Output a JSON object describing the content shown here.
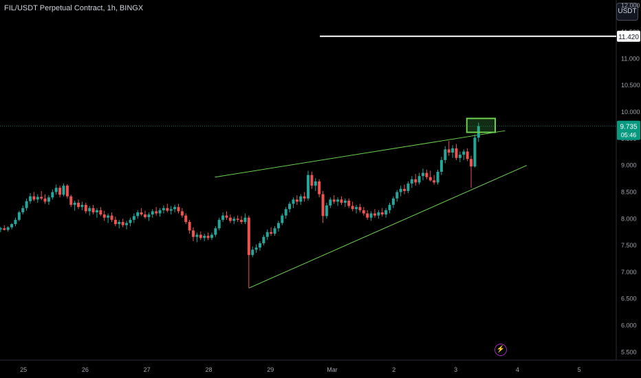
{
  "header": {
    "title": "FIL/USDT Perpetual Contract, 1h, BINGX",
    "currency": "USDT"
  },
  "colors": {
    "up": "#26a69a",
    "down": "#ef5350",
    "trend": "#6ccf4e",
    "price": "#089981",
    "background": "#000000"
  },
  "chart_data": {
    "type": "candlestick",
    "title": "FIL/USDT Perpetual Contract, 1h, BINGX",
    "xlabel": "",
    "ylabel": "",
    "ylim": [
      5.35,
      12.1
    ],
    "y_ticks": [
      "12.000",
      "11.500",
      "11.000",
      "10.500",
      "10.000",
      "9.500",
      "9.000",
      "8.500",
      "8.000",
      "7.500",
      "7.000",
      "6.500",
      "6.000",
      "5.500"
    ],
    "x_ticks": [
      "25",
      "26",
      "27",
      "28",
      "29",
      "Mar",
      "2",
      "3",
      "4",
      "5"
    ],
    "x_tick_days": [
      0,
      1,
      2,
      3,
      4,
      5,
      6,
      7,
      8,
      9
    ],
    "x_range_days": [
      -0.38,
      9.6
    ],
    "key_level": {
      "value": 11.42,
      "label": "11.420",
      "from_day": 4.8
    },
    "current_price": {
      "value": 9.735,
      "label": "9.735",
      "countdown": "05:46"
    },
    "trendlines": [
      {
        "name": "upper",
        "from": [
          3.1,
          8.78
        ],
        "to": [
          7.8,
          9.65
        ]
      },
      {
        "name": "lower",
        "from": [
          3.65,
          6.7
        ],
        "to": [
          8.15,
          9.0
        ]
      }
    ],
    "highlight_box": {
      "day_range": [
        7.18,
        7.64
      ],
      "price_range": [
        9.62,
        9.88
      ]
    },
    "candles": [
      [
        -0.37,
        7.8,
        7.85,
        7.75,
        7.82
      ],
      [
        -0.31,
        7.82,
        7.88,
        7.78,
        7.79
      ],
      [
        -0.25,
        7.79,
        7.86,
        7.76,
        7.84
      ],
      [
        -0.19,
        7.84,
        7.92,
        7.8,
        7.9
      ],
      [
        -0.13,
        7.9,
        8.02,
        7.86,
        7.98
      ],
      [
        -0.07,
        7.98,
        8.15,
        7.95,
        8.12
      ],
      [
        -0.01,
        8.12,
        8.25,
        8.08,
        8.2
      ],
      [
        0.05,
        8.2,
        8.38,
        8.15,
        8.33
      ],
      [
        0.11,
        8.33,
        8.48,
        8.28,
        8.42
      ],
      [
        0.17,
        8.42,
        8.5,
        8.33,
        8.36
      ],
      [
        0.23,
        8.36,
        8.46,
        8.3,
        8.41
      ],
      [
        0.29,
        8.41,
        8.52,
        8.35,
        8.38
      ],
      [
        0.35,
        8.38,
        8.46,
        8.28,
        8.32
      ],
      [
        0.41,
        8.32,
        8.44,
        8.26,
        8.4
      ],
      [
        0.47,
        8.4,
        8.55,
        8.36,
        8.5
      ],
      [
        0.53,
        8.5,
        8.64,
        8.45,
        8.58
      ],
      [
        0.59,
        8.58,
        8.62,
        8.4,
        8.45
      ],
      [
        0.65,
        8.45,
        8.66,
        8.42,
        8.62
      ],
      [
        0.71,
        8.62,
        8.65,
        8.38,
        8.42
      ],
      [
        0.77,
        8.42,
        8.45,
        8.22,
        8.26
      ],
      [
        0.83,
        8.26,
        8.34,
        8.15,
        8.3
      ],
      [
        0.89,
        8.3,
        8.36,
        8.18,
        8.22
      ],
      [
        0.95,
        8.22,
        8.32,
        8.16,
        8.26
      ],
      [
        1.01,
        8.26,
        8.3,
        8.1,
        8.14
      ],
      [
        1.07,
        8.14,
        8.24,
        8.06,
        8.2
      ],
      [
        1.13,
        8.2,
        8.26,
        8.08,
        8.12
      ],
      [
        1.19,
        8.12,
        8.2,
        8.02,
        8.16
      ],
      [
        1.25,
        8.16,
        8.22,
        8.05,
        8.08
      ],
      [
        1.31,
        8.08,
        8.15,
        7.96,
        8.02
      ],
      [
        1.37,
        8.02,
        8.1,
        7.92,
        8.06
      ],
      [
        1.43,
        8.06,
        8.12,
        7.94,
        7.98
      ],
      [
        1.49,
        7.98,
        8.04,
        7.86,
        7.9
      ],
      [
        1.55,
        7.9,
        7.98,
        7.82,
        7.94
      ],
      [
        1.61,
        7.94,
        8.0,
        7.84,
        7.88
      ],
      [
        1.67,
        7.88,
        7.96,
        7.8,
        7.92
      ],
      [
        1.73,
        7.92,
        8.02,
        7.86,
        7.98
      ],
      [
        1.79,
        7.98,
        8.1,
        7.92,
        8.05
      ],
      [
        1.85,
        8.05,
        8.16,
        8.0,
        8.12
      ],
      [
        1.91,
        8.12,
        8.2,
        8.05,
        8.08
      ],
      [
        1.97,
        8.08,
        8.15,
        8.0,
        8.03
      ],
      [
        2.03,
        8.03,
        8.12,
        7.96,
        8.08
      ],
      [
        2.09,
        8.08,
        8.18,
        8.02,
        8.14
      ],
      [
        2.15,
        8.14,
        8.22,
        8.06,
        8.1
      ],
      [
        2.21,
        8.1,
        8.2,
        8.04,
        8.16
      ],
      [
        2.27,
        8.16,
        8.25,
        8.1,
        8.2
      ],
      [
        2.33,
        8.2,
        8.28,
        8.12,
        8.15
      ],
      [
        2.39,
        8.15,
        8.24,
        8.08,
        8.18
      ],
      [
        2.45,
        8.18,
        8.26,
        8.12,
        8.22
      ],
      [
        2.51,
        8.22,
        8.28,
        8.1,
        8.14
      ],
      [
        2.57,
        8.14,
        8.2,
        8.02,
        8.06
      ],
      [
        2.63,
        8.06,
        8.1,
        7.9,
        7.94
      ],
      [
        2.69,
        7.94,
        7.98,
        7.72,
        7.78
      ],
      [
        2.75,
        7.78,
        7.84,
        7.58,
        7.66
      ],
      [
        2.81,
        7.66,
        7.74,
        7.56,
        7.7
      ],
      [
        2.87,
        7.7,
        7.76,
        7.6,
        7.64
      ],
      [
        2.93,
        7.64,
        7.72,
        7.58,
        7.68
      ],
      [
        2.99,
        7.68,
        7.74,
        7.6,
        7.64
      ],
      [
        3.05,
        7.64,
        7.74,
        7.6,
        7.7
      ],
      [
        3.11,
        7.7,
        7.86,
        7.66,
        7.82
      ],
      [
        3.17,
        7.82,
        8.02,
        7.78,
        7.98
      ],
      [
        3.23,
        7.98,
        8.12,
        7.94,
        8.06
      ],
      [
        3.29,
        8.06,
        8.14,
        7.98,
        8.02
      ],
      [
        3.35,
        8.02,
        8.08,
        7.92,
        7.96
      ],
      [
        3.41,
        7.96,
        8.04,
        7.9,
        8.0
      ],
      [
        3.47,
        8.0,
        8.06,
        7.94,
        7.98
      ],
      [
        3.53,
        7.98,
        8.05,
        7.9,
        7.94
      ],
      [
        3.59,
        7.94,
        8.1,
        7.9,
        8.02
      ],
      [
        3.65,
        8.02,
        8.06,
        6.7,
        7.32
      ],
      [
        3.71,
        7.32,
        7.48,
        7.28,
        7.42
      ],
      [
        3.77,
        7.42,
        7.52,
        7.36,
        7.46
      ],
      [
        3.83,
        7.46,
        7.58,
        7.4,
        7.54
      ],
      [
        3.89,
        7.54,
        7.7,
        7.5,
        7.66
      ],
      [
        3.95,
        7.66,
        7.8,
        7.6,
        7.75
      ],
      [
        4.01,
        7.75,
        7.84,
        7.68,
        7.72
      ],
      [
        4.07,
        7.72,
        7.86,
        7.68,
        7.82
      ],
      [
        4.13,
        7.82,
        7.96,
        7.76,
        7.92
      ],
      [
        4.19,
        7.92,
        8.1,
        7.88,
        8.06
      ],
      [
        4.25,
        8.06,
        8.22,
        8.0,
        8.18
      ],
      [
        4.31,
        8.18,
        8.32,
        8.12,
        8.28
      ],
      [
        4.37,
        8.28,
        8.4,
        8.2,
        8.36
      ],
      [
        4.43,
        8.36,
        8.44,
        8.26,
        8.32
      ],
      [
        4.49,
        8.32,
        8.46,
        8.26,
        8.42
      ],
      [
        4.55,
        8.42,
        8.5,
        8.32,
        8.38
      ],
      [
        4.61,
        8.38,
        8.9,
        8.34,
        8.82
      ],
      [
        4.67,
        8.82,
        8.88,
        8.56,
        8.62
      ],
      [
        4.73,
        8.62,
        8.76,
        8.52,
        8.7
      ],
      [
        4.79,
        8.7,
        8.74,
        8.4,
        8.46
      ],
      [
        4.85,
        8.46,
        8.52,
        7.92,
        8.05
      ],
      [
        4.91,
        8.05,
        8.3,
        8.0,
        8.25
      ],
      [
        4.97,
        8.25,
        8.4,
        8.2,
        8.36
      ],
      [
        5.03,
        8.36,
        8.44,
        8.28,
        8.32
      ],
      [
        5.09,
        8.32,
        8.4,
        8.24,
        8.36
      ],
      [
        5.15,
        8.36,
        8.42,
        8.26,
        8.3
      ],
      [
        5.21,
        8.3,
        8.38,
        8.22,
        8.34
      ],
      [
        5.27,
        8.34,
        8.38,
        8.2,
        8.24
      ],
      [
        5.33,
        8.24,
        8.32,
        8.14,
        8.18
      ],
      [
        5.39,
        8.18,
        8.26,
        8.1,
        8.22
      ],
      [
        5.45,
        8.22,
        8.28,
        8.12,
        8.16
      ],
      [
        5.51,
        8.16,
        8.22,
        8.06,
        8.1
      ],
      [
        5.57,
        8.1,
        8.16,
        7.98,
        8.02
      ],
      [
        5.63,
        8.02,
        8.14,
        7.96,
        8.1
      ],
      [
        5.69,
        8.1,
        8.18,
        8.02,
        8.06
      ],
      [
        5.75,
        8.06,
        8.16,
        8.0,
        8.12
      ],
      [
        5.81,
        8.12,
        8.2,
        8.04,
        8.08
      ],
      [
        5.87,
        8.08,
        8.2,
        8.02,
        8.16
      ],
      [
        5.93,
        8.16,
        8.3,
        8.1,
        8.26
      ],
      [
        5.99,
        8.26,
        8.42,
        8.2,
        8.38
      ],
      [
        6.05,
        8.38,
        8.54,
        8.32,
        8.5
      ],
      [
        6.11,
        8.5,
        8.62,
        8.42,
        8.56
      ],
      [
        6.17,
        8.56,
        8.64,
        8.46,
        8.52
      ],
      [
        6.23,
        8.52,
        8.7,
        8.48,
        8.66
      ],
      [
        6.29,
        8.66,
        8.8,
        8.58,
        8.74
      ],
      [
        6.35,
        8.74,
        8.84,
        8.62,
        8.68
      ],
      [
        6.41,
        8.68,
        8.86,
        8.64,
        8.8
      ],
      [
        6.47,
        8.8,
        8.94,
        8.72,
        8.86
      ],
      [
        6.53,
        8.86,
        8.92,
        8.74,
        8.78
      ],
      [
        6.59,
        8.78,
        8.9,
        8.7,
        8.72
      ],
      [
        6.65,
        8.72,
        8.82,
        8.64,
        8.68
      ],
      [
        6.71,
        8.68,
        8.92,
        8.64,
        8.88
      ],
      [
        6.77,
        8.88,
        9.16,
        8.82,
        9.1
      ],
      [
        6.83,
        9.1,
        9.36,
        9.04,
        9.3
      ],
      [
        6.89,
        9.3,
        9.46,
        9.18,
        9.24
      ],
      [
        6.95,
        9.24,
        9.38,
        9.14,
        9.32
      ],
      [
        7.01,
        9.32,
        9.4,
        9.1,
        9.14
      ],
      [
        7.07,
        9.14,
        9.26,
        9.06,
        9.2
      ],
      [
        7.13,
        9.2,
        9.3,
        9.1,
        9.26
      ],
      [
        7.19,
        9.26,
        9.32,
        9.08,
        9.12
      ],
      [
        7.25,
        9.12,
        9.18,
        8.58,
        8.98
      ],
      [
        7.31,
        8.98,
        9.58,
        8.96,
        9.52
      ],
      [
        7.37,
        9.52,
        9.8,
        9.44,
        9.735
      ]
    ]
  }
}
